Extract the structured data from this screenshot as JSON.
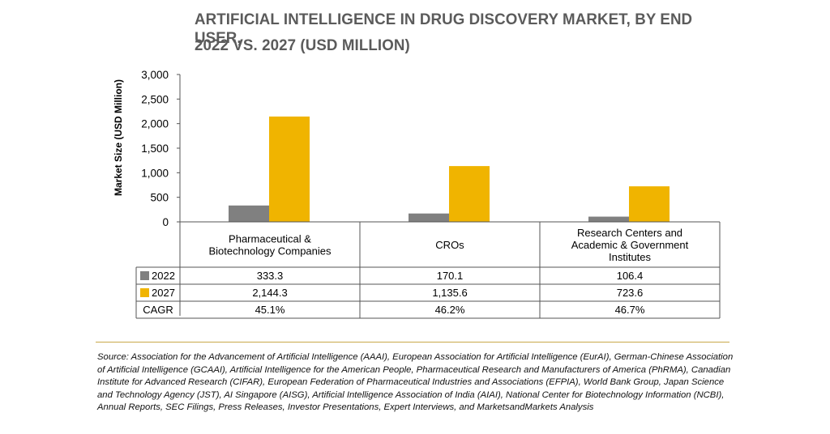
{
  "header": {
    "title_line1": "ARTIFICIAL INTELLIGENCE IN DRUG DISCOVERY MARKET, BY END USER,",
    "title_line2": "2022 VS. 2027 (USD MILLION)"
  },
  "chart_data": {
    "type": "bar",
    "title": "ARTIFICIAL INTELLIGENCE IN DRUG DISCOVERY MARKET, BY END USER, 2022 VS. 2027 (USD MILLION)",
    "ylabel": "Market Size (USD Million)",
    "ylim": [
      0,
      3000
    ],
    "yticks": [
      "0",
      "500",
      "1,000",
      "1,500",
      "2,000",
      "2,500",
      "3,000"
    ],
    "ytick_values": [
      0,
      500,
      1000,
      1500,
      2000,
      2500,
      3000
    ],
    "grid": false,
    "categories": [
      [
        "Pharmaceutical &",
        "Biotechnology Companies"
      ],
      [
        "CROs"
      ],
      [
        "Research Centers and",
        "Academic & Government",
        "Institutes"
      ]
    ],
    "series": [
      {
        "name": "2022",
        "color": "#808080",
        "values": [
          333.3,
          170.1,
          106.4
        ],
        "labels": [
          "333.3",
          "170.1",
          "106.4"
        ]
      },
      {
        "name": "2027",
        "color": "#f0b400",
        "values": [
          2144.3,
          1135.6,
          723.6
        ],
        "labels": [
          "2,144.3",
          "1,135.6",
          "723.6"
        ]
      }
    ],
    "table_rows": [
      {
        "label": "CAGR",
        "values": [
          "45.1%",
          "46.2%",
          "46.7%"
        ]
      }
    ]
  },
  "source_text": "Source: Association for the Advancement of Artificial Intelligence (AAAI), European Association for Artificial Intelligence (EurAI), German-Chinese Association of Artificial Intelligence (GCAAI), Artificial Intelligence for the American People, Pharmaceutical Research and Manufacturers of America (PhRMA), Canadian Institute for Advanced Research (CIFAR), European Federation of Pharmaceutical Industries and Associations (EFPIA), World Bank Group, Japan Science and Technology Agency (JST), AI Singapore (AISG), Artificial Intelligence Association of India (AIAI), National Center for Biotechnology Information (NCBI), Annual Reports, SEC Filings, Press Releases, Investor Presentations, Expert Interviews, and MarketsandMarkets Analysis"
}
